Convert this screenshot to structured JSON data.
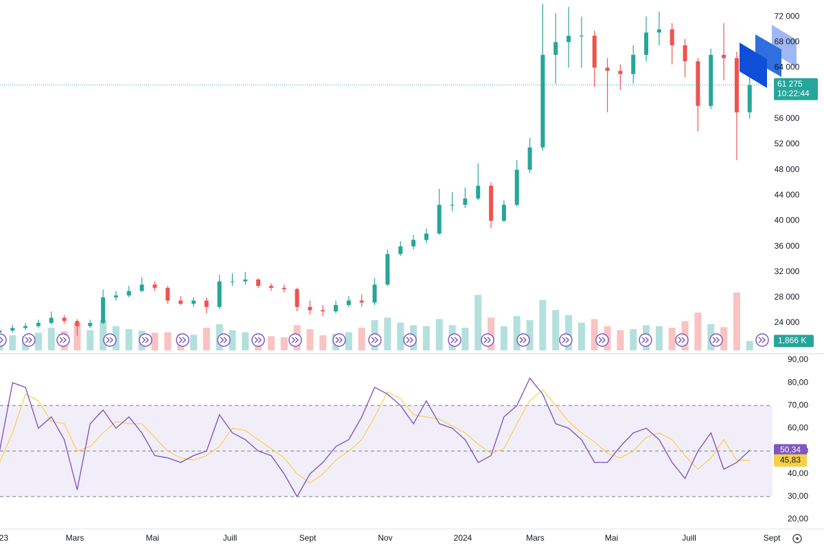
{
  "chart_data": [
    {
      "type": "candlestick",
      "x": [
        0.5,
        1.5,
        2.5,
        3.5,
        4.5,
        5.5,
        6.5,
        7.5,
        8.5,
        9.5,
        10.5,
        11.5,
        12.5,
        13.5,
        14.5,
        15.5,
        16.5,
        17.5,
        18.5,
        19.5,
        20.5,
        21.5,
        22.5,
        23.5,
        24.5,
        25.5,
        26.5,
        27.5,
        28.5,
        29.5,
        30.5,
        31.5,
        32.5,
        33.5,
        34.5,
        35.5,
        36.5,
        37.5,
        38.5,
        39.5,
        40.5,
        41.5,
        42.5,
        43.5,
        44.5,
        45.5,
        46.5,
        47.5,
        48.5,
        49.5,
        50.5,
        51.5,
        52.5,
        53.5,
        54.5,
        55.5,
        56.5,
        57.5,
        58.5
      ],
      "open": [
        22500,
        22800,
        23200,
        23500,
        24000,
        24800,
        24300,
        23500,
        24000,
        28000,
        28300,
        29000,
        30000,
        29500,
        27500,
        27000,
        27500,
        26500,
        30500,
        30500,
        30800,
        29800,
        29500,
        29300,
        26500,
        26000,
        25800,
        26800,
        27500,
        27200,
        30000,
        34800,
        36000,
        37000,
        38000,
        42500,
        42500,
        43500,
        45500,
        40000,
        42500,
        48000,
        51500,
        66000,
        68000,
        69000,
        69000,
        64000,
        63500,
        63000,
        66000,
        69500,
        70000,
        67500,
        65000,
        58000,
        66000,
        65500,
        57000
      ],
      "high": [
        23300,
        23700,
        24000,
        24500,
        25800,
        25200,
        24600,
        24500,
        29200,
        29000,
        29800,
        31200,
        30500,
        29800,
        28200,
        28000,
        28000,
        31500,
        31800,
        32000,
        31000,
        30200,
        30000,
        29500,
        27500,
        26800,
        27500,
        28200,
        28500,
        31000,
        35500,
        36800,
        37800,
        38800,
        45000,
        44500,
        45200,
        49000,
        46000,
        43200,
        49500,
        53000,
        74000,
        72500,
        73500,
        72000,
        69800,
        65500,
        64500,
        67500,
        72000,
        72800,
        71000,
        68500,
        65500,
        67000,
        71000,
        66500,
        62500
      ],
      "low": [
        22200,
        22500,
        22900,
        23200,
        23800,
        23900,
        22000,
        23200,
        23800,
        27500,
        28000,
        28800,
        29000,
        27000,
        26800,
        26500,
        25500,
        26200,
        29800,
        30000,
        29500,
        29000,
        28800,
        25800,
        25300,
        25000,
        25500,
        26500,
        26500,
        26800,
        29800,
        34500,
        35500,
        36500,
        37800,
        41500,
        42000,
        43200,
        38800,
        39800,
        42200,
        47500,
        51000,
        61500,
        64000,
        64000,
        61000,
        57000,
        60500,
        61500,
        65000,
        67500,
        64500,
        62500,
        54000,
        57500,
        62000,
        49500,
        56000
      ],
      "close": [
        22800,
        23200,
        23500,
        24000,
        24800,
        24300,
        23500,
        24000,
        28000,
        28300,
        29000,
        30000,
        29500,
        27500,
        27000,
        27500,
        26500,
        30500,
        30500,
        30800,
        29800,
        29500,
        29300,
        26500,
        26000,
        25800,
        26800,
        27500,
        27200,
        30000,
        34800,
        36000,
        37000,
        38000,
        42500,
        42500,
        43500,
        45500,
        40000,
        42500,
        48000,
        51500,
        66000,
        68000,
        69000,
        69000,
        64000,
        63500,
        63000,
        66000,
        69500,
        70000,
        67500,
        65000,
        58000,
        66000,
        65500,
        57000,
        61275
      ],
      "volume": [
        2500,
        3000,
        2800,
        3500,
        4500,
        3800,
        5500,
        4000,
        6000,
        4800,
        4200,
        3900,
        3500,
        3600,
        3300,
        3100,
        4500,
        5200,
        4000,
        3600,
        3000,
        2800,
        2600,
        5000,
        4200,
        3000,
        3300,
        3600,
        4500,
        6000,
        6500,
        5500,
        5000,
        4800,
        6200,
        5000,
        4500,
        11000,
        6500,
        4800,
        6800,
        6000,
        10000,
        8000,
        7000,
        5500,
        6200,
        4800,
        4000,
        4200,
        5000,
        4800,
        4500,
        5800,
        7500,
        5200,
        4600,
        11500,
        1866
      ],
      "vlim": [
        0,
        15000
      ],
      "volume_label": "1,866 K",
      "last_price_label": "61 275",
      "countdown": "10:22:44",
      "up_color": "#26a69a",
      "down_color": "#ef5350",
      "xlim": [
        0,
        60
      ],
      "xticks": [
        {
          "value": 0.5,
          "label": "23"
        },
        {
          "value": 6,
          "label": "Mars"
        },
        {
          "value": 12,
          "label": "Mai"
        },
        {
          "value": 18,
          "label": "Juill"
        },
        {
          "value": 24,
          "label": "Sept"
        },
        {
          "value": 30,
          "label": "Nov"
        },
        {
          "value": 36,
          "label": "2024"
        },
        {
          "value": 41.6,
          "label": "Mars"
        },
        {
          "value": 47.5,
          "label": "Mai"
        },
        {
          "value": 53.5,
          "label": "Juill"
        },
        {
          "value": 59.9,
          "label": "Sept"
        }
      ],
      "ylim": [
        19700,
        74600
      ],
      "yticks": [
        {
          "value": 24000,
          "label": "24 000"
        },
        {
          "value": 28000,
          "label": "28 000"
        },
        {
          "value": 32000,
          "label": "32 000"
        },
        {
          "value": 36000,
          "label": "36 000"
        },
        {
          "value": 40000,
          "label": "40 000"
        },
        {
          "value": 44000,
          "label": "44 000"
        },
        {
          "value": 48000,
          "label": "48 000"
        },
        {
          "value": 52000,
          "label": "52 000"
        },
        {
          "value": 56000,
          "label": "56 000"
        },
        {
          "value": 64000,
          "label": "64 000"
        },
        {
          "value": 68000,
          "label": "68 000"
        },
        {
          "value": 72000,
          "label": "72 000"
        }
      ],
      "grid": true
    },
    {
      "type": "line",
      "x": [
        0.5,
        1.5,
        2.5,
        3.5,
        4.5,
        5.5,
        6.5,
        7.5,
        8.5,
        9.5,
        10.5,
        11.5,
        12.5,
        13.5,
        14.5,
        15.5,
        16.5,
        17.5,
        18.5,
        19.5,
        20.5,
        21.5,
        22.5,
        23.5,
        24.5,
        25.5,
        26.5,
        27.5,
        28.5,
        29.5,
        30.5,
        31.5,
        32.5,
        33.5,
        34.5,
        35.5,
        36.5,
        37.5,
        38.5,
        39.5,
        40.5,
        41.5,
        42.5,
        43.5,
        44.5,
        45.5,
        46.5,
        47.5,
        48.5,
        49.5,
        50.5,
        51.5,
        52.5,
        53.5,
        54.5,
        55.5,
        56.5,
        57.5,
        58.5
      ],
      "series": [
        {
          "name": "RSI",
          "color": "#7e57c2",
          "values": [
            50,
            80,
            78,
            60,
            65,
            55,
            33,
            62,
            68,
            60,
            65,
            58,
            48,
            47,
            45,
            48,
            50,
            66,
            58,
            55,
            50,
            48,
            40,
            30,
            40,
            45,
            52,
            55,
            65,
            78,
            75,
            70,
            62,
            72,
            62,
            60,
            55,
            45,
            48,
            65,
            70,
            82,
            75,
            62,
            60,
            55,
            45,
            45,
            52,
            58,
            60,
            55,
            45,
            38,
            50,
            58,
            42,
            45,
            50.34
          ],
          "value_label": "50,34"
        },
        {
          "name": "RSI-based MA",
          "color": "#f7d046",
          "values": [
            45,
            58,
            75,
            72,
            63,
            62,
            50,
            52,
            58,
            63,
            62,
            62,
            56,
            50,
            47,
            46,
            48,
            52,
            60,
            59,
            55,
            51,
            47,
            40,
            36,
            40,
            46,
            50,
            55,
            65,
            76,
            73,
            66,
            65,
            64,
            61,
            58,
            53,
            49,
            51,
            62,
            72,
            77,
            70,
            63,
            58,
            54,
            49,
            47,
            50,
            56,
            58,
            55,
            48,
            42,
            47,
            55,
            46,
            45.83
          ],
          "value_label": "45,83"
        }
      ],
      "levels": [
        70,
        50,
        30
      ],
      "band_color": "#7e57c2",
      "xlim": [
        0,
        60
      ],
      "ylim": [
        15.8,
        91.2
      ],
      "yticks": [
        {
          "value": 20,
          "label": "20,00"
        },
        {
          "value": 30,
          "label": "30,00"
        },
        {
          "value": 40,
          "label": "40,00"
        },
        {
          "value": 50,
          "label": "50,00"
        },
        {
          "value": 60,
          "label": "60,00"
        },
        {
          "value": 70,
          "label": "70,00"
        },
        {
          "value": 80,
          "label": "80,00"
        },
        {
          "value": 90,
          "label": "90,00"
        }
      ],
      "grid": true
    }
  ]
}
